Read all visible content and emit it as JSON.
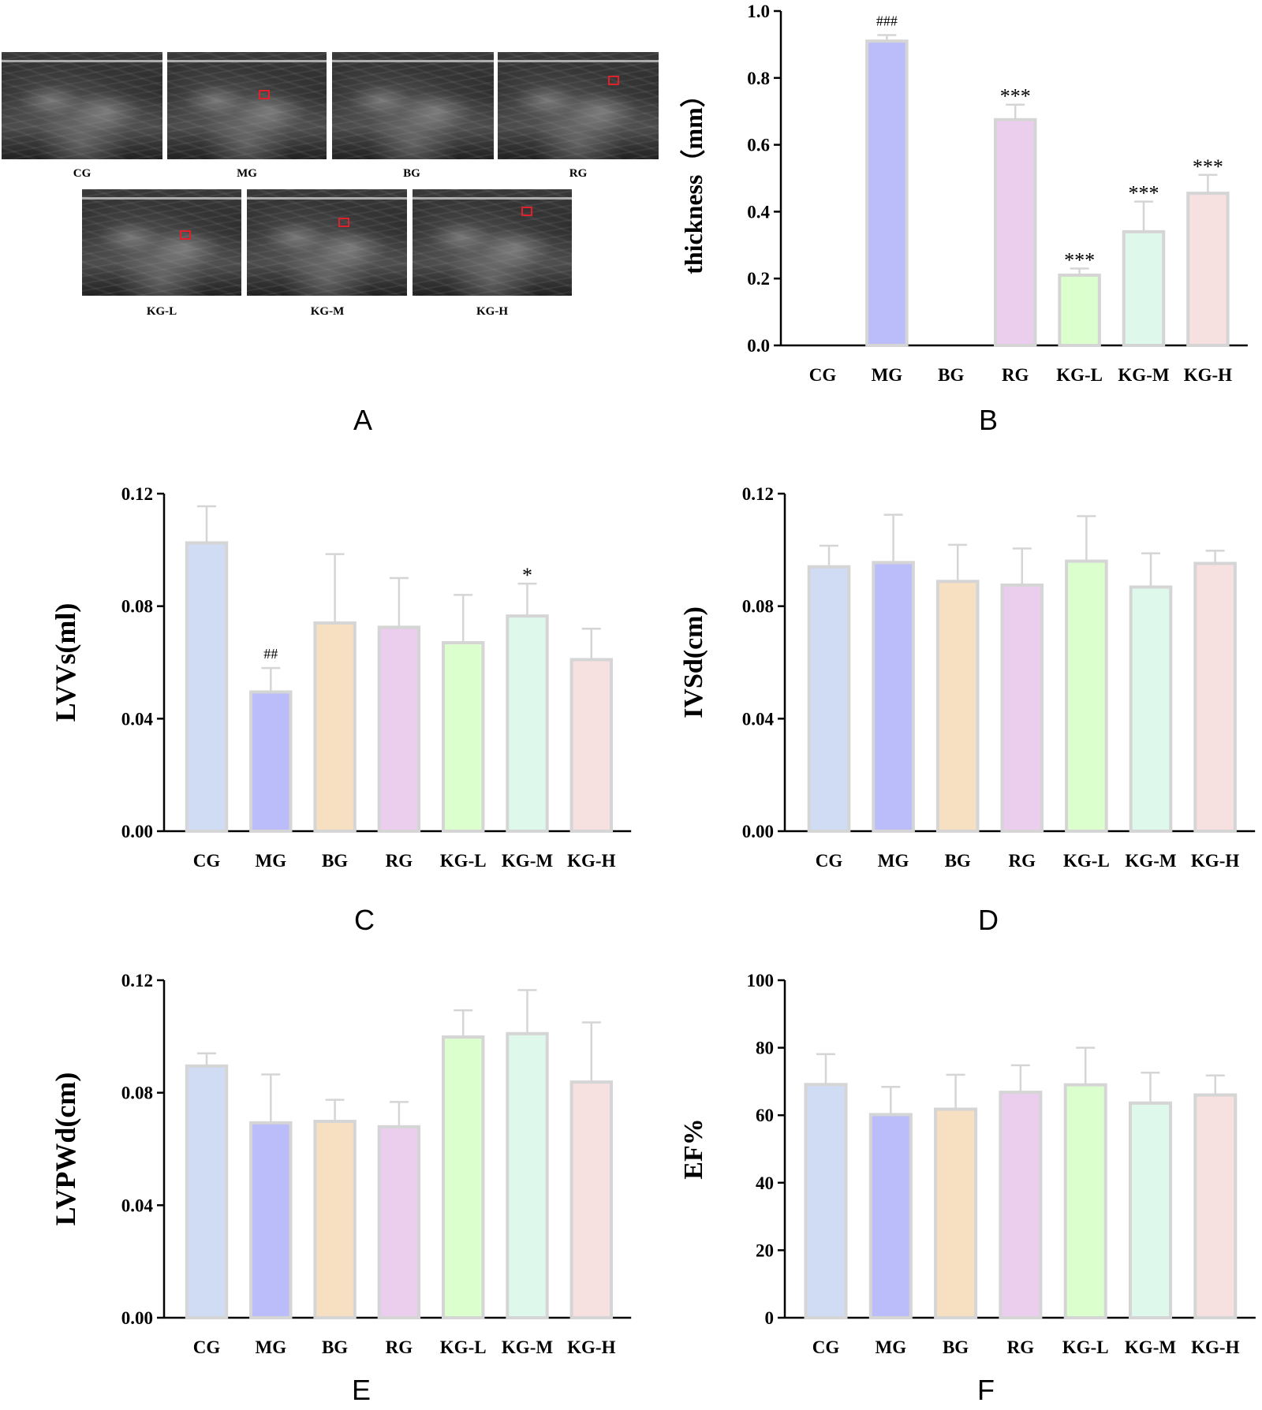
{
  "figure": {
    "panel_letters": [
      "A",
      "B",
      "C",
      "D",
      "E",
      "F"
    ]
  },
  "ultrasound": {
    "labels": [
      "CG",
      "MG",
      "BG",
      "RG",
      "KG-L",
      "KG-M",
      "KG-H"
    ]
  },
  "colors": {
    "fills": [
      "#cfdcf3",
      "#bbbdfb",
      "#f7e0c2",
      "#ebcdee",
      "#dcffce",
      "#dff8ec",
      "#f6e0e0"
    ],
    "stroke": "#d5d5d5",
    "axis": "#000000"
  },
  "chart_data": [
    {
      "id": "B",
      "type": "bar",
      "categories": [
        "CG",
        "MG",
        "BG",
        "RG",
        "KG-L",
        "KG-M",
        "KG-H"
      ],
      "values": [
        0,
        0.91,
        0,
        0.675,
        0.21,
        0.34,
        0.455
      ],
      "errors": [
        0,
        0.018,
        0,
        0.045,
        0.02,
        0.09,
        0.055
      ],
      "annotations": [
        "",
        "###",
        "",
        "***",
        "***",
        "***",
        "***"
      ],
      "ylabel": "thickness（mm）",
      "ylim": [
        0,
        1.0
      ],
      "yticks": [
        "0.0",
        "0.2",
        "0.4",
        "0.6",
        "0.8",
        "1.0"
      ],
      "ytick_values": [
        0,
        0.2,
        0.4,
        0.6,
        0.8,
        1.0
      ]
    },
    {
      "id": "C",
      "type": "bar",
      "categories": [
        "CG",
        "MG",
        "BG",
        "RG",
        "KG-L",
        "KG-M",
        "KG-H"
      ],
      "values": [
        0.1025,
        0.0495,
        0.074,
        0.0725,
        0.067,
        0.0765,
        0.061
      ],
      "errors": [
        0.013,
        0.0085,
        0.0245,
        0.0175,
        0.017,
        0.0115,
        0.011
      ],
      "annotations": [
        "",
        "##",
        "",
        "",
        "",
        "*",
        ""
      ],
      "ylabel": "LVVs(ml)",
      "ylim": [
        0,
        0.12
      ],
      "yticks": [
        "0.00",
        "0.04",
        "0.08",
        "0.12"
      ],
      "ytick_values": [
        0,
        0.04,
        0.08,
        0.12
      ]
    },
    {
      "id": "D",
      "type": "bar",
      "categories": [
        "CG",
        "MG",
        "BG",
        "RG",
        "KG-L",
        "KG-M",
        "KG-H"
      ],
      "values": [
        0.094,
        0.0955,
        0.0888,
        0.0875,
        0.096,
        0.0868,
        0.0952
      ],
      "errors": [
        0.0075,
        0.017,
        0.013,
        0.013,
        0.016,
        0.012,
        0.0045
      ],
      "annotations": [
        "",
        "",
        "",
        "",
        "",
        "",
        ""
      ],
      "ylabel": "IVSd(cm)",
      "ylim": [
        0,
        0.12
      ],
      "yticks": [
        "0.00",
        "0.04",
        "0.08",
        "0.12"
      ],
      "ytick_values": [
        0,
        0.04,
        0.08,
        0.12
      ]
    },
    {
      "id": "E",
      "type": "bar",
      "categories": [
        "CG",
        "MG",
        "BG",
        "RG",
        "KG-L",
        "KG-M",
        "KG-H"
      ],
      "values": [
        0.0895,
        0.0693,
        0.0698,
        0.0679,
        0.0998,
        0.101,
        0.0838
      ],
      "errors": [
        0.0045,
        0.0172,
        0.0077,
        0.0088,
        0.0095,
        0.0155,
        0.0212
      ],
      "annotations": [
        "",
        "",
        "",
        "",
        "",
        "",
        ""
      ],
      "ylabel": "LVPWd(cm)",
      "ylim": [
        0,
        0.12
      ],
      "yticks": [
        "0.00",
        "0.04",
        "0.08",
        "0.12"
      ],
      "ytick_values": [
        0,
        0.04,
        0.08,
        0.12
      ]
    },
    {
      "id": "F",
      "type": "bar",
      "categories": [
        "CG",
        "MG",
        "BG",
        "RG",
        "KG-L",
        "KG-M",
        "KG-H"
      ],
      "values": [
        69.1,
        60.2,
        61.8,
        66.8,
        69.0,
        63.6,
        66.0
      ],
      "errors": [
        9.0,
        8.2,
        10.2,
        8.0,
        11.0,
        9.0,
        5.8
      ],
      "annotations": [
        "",
        "",
        "",
        "",
        "",
        "",
        ""
      ],
      "ylabel": "EF%",
      "ylim": [
        0,
        100
      ],
      "yticks": [
        "0",
        "20",
        "40",
        "60",
        "80",
        "100"
      ],
      "ytick_values": [
        0,
        20,
        40,
        60,
        80,
        100
      ]
    }
  ]
}
